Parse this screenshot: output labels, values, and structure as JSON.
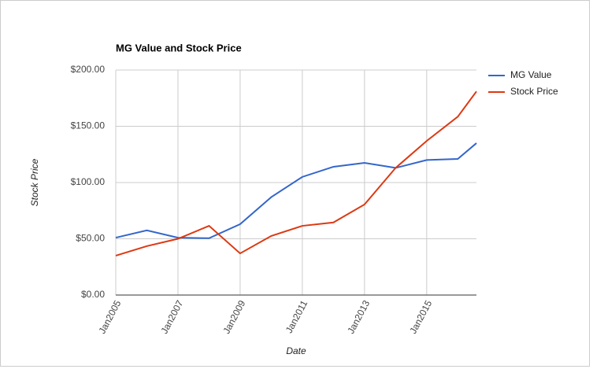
{
  "chart_data": {
    "type": "line",
    "title": "MG Value and Stock Price",
    "x_label": "Date",
    "y_label": "Stock Price",
    "x": [
      2005,
      2006,
      2007,
      2008,
      2009,
      2010,
      2011,
      2012,
      2013,
      2014,
      2015,
      2016,
      2016.6
    ],
    "series": [
      {
        "name": "MG Value",
        "color": "#3366cc",
        "values": [
          51,
          57.5,
          51,
          50.5,
          63,
          87,
          105,
          114,
          117.5,
          113,
          120,
          121,
          135
        ]
      },
      {
        "name": "Stock Price",
        "color": "#dc3912",
        "values": [
          35,
          43.5,
          50,
          61.5,
          37,
          52.5,
          61.5,
          64.5,
          80.5,
          113,
          137,
          158.5,
          181
        ]
      }
    ],
    "xlim": [
      2005,
      2016.6
    ],
    "xticks": [
      {
        "value": 2005,
        "label": "Jan2005"
      },
      {
        "value": 2007,
        "label": "Jan2007"
      },
      {
        "value": 2009,
        "label": "Jan2009"
      },
      {
        "value": 2011,
        "label": "Jan2011"
      },
      {
        "value": 2013,
        "label": "Jan2013"
      },
      {
        "value": 2015,
        "label": "Jan2015"
      }
    ],
    "ylim": [
      0,
      200
    ],
    "yticks": [
      {
        "value": 0,
        "label": "$0.00"
      },
      {
        "value": 50,
        "label": "$50.00"
      },
      {
        "value": 100,
        "label": "$100.00"
      },
      {
        "value": 150,
        "label": "$150.00"
      },
      {
        "value": 200,
        "label": "$200.00"
      }
    ],
    "grid": true,
    "legend": "right"
  }
}
